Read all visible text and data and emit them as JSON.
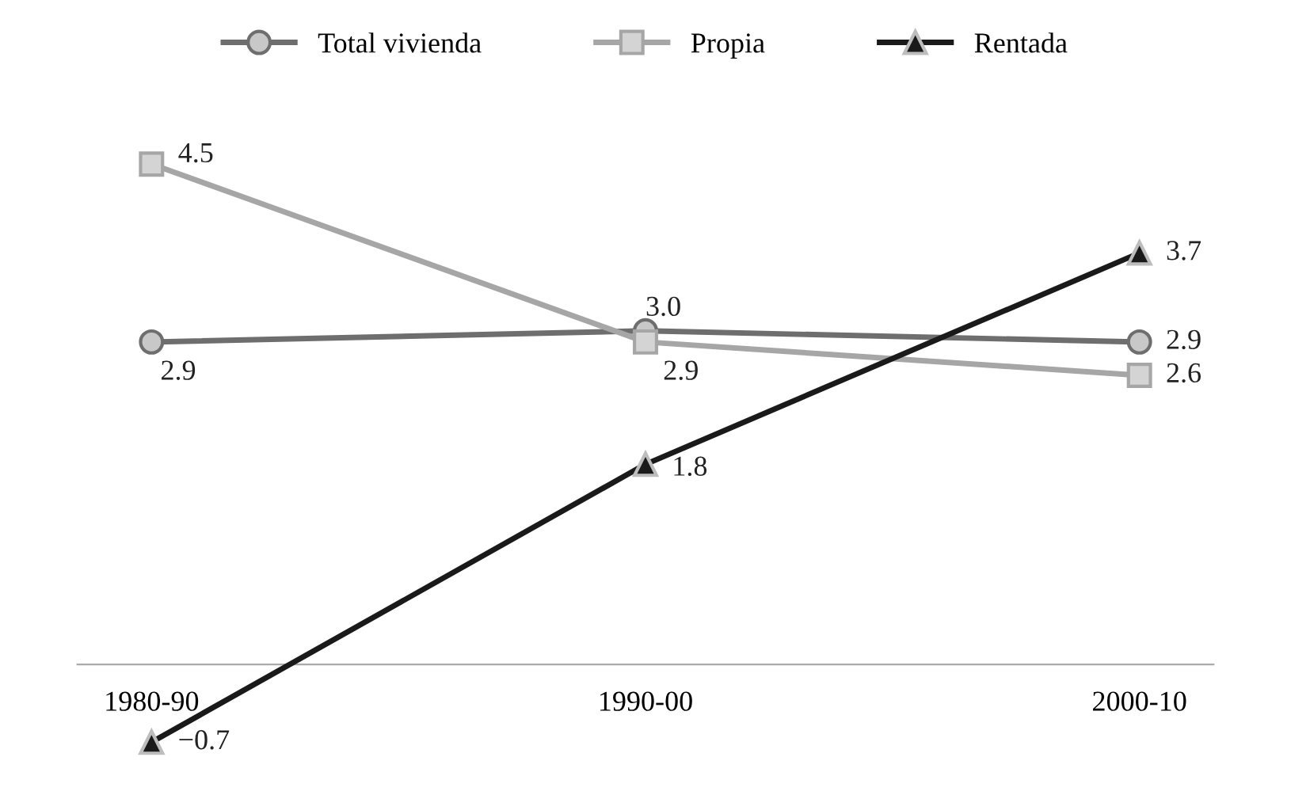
{
  "chart_data": {
    "type": "line",
    "categories": [
      "1980-90",
      "1990-00",
      "2000-10"
    ],
    "series": [
      {
        "name": "Total vivienda",
        "color": "#6e6e6e",
        "marker": "circle",
        "values": [
          2.9,
          3.0,
          2.9
        ],
        "value_labels": [
          "2.9",
          "3.0",
          "2.9"
        ]
      },
      {
        "name": "Propia",
        "color": "#a6a6a6",
        "marker": "square",
        "values": [
          4.5,
          2.9,
          2.6
        ],
        "value_labels": [
          "4.5",
          "2.9",
          "2.6"
        ]
      },
      {
        "name": "Rentada",
        "color": "#1a1a1a",
        "marker": "triangle",
        "values": [
          -0.7,
          1.8,
          3.7
        ],
        "value_labels": [
          "−0.7",
          "1.8",
          "3.7"
        ]
      }
    ],
    "legend": "top",
    "grid": false,
    "tick_labels": "x"
  }
}
